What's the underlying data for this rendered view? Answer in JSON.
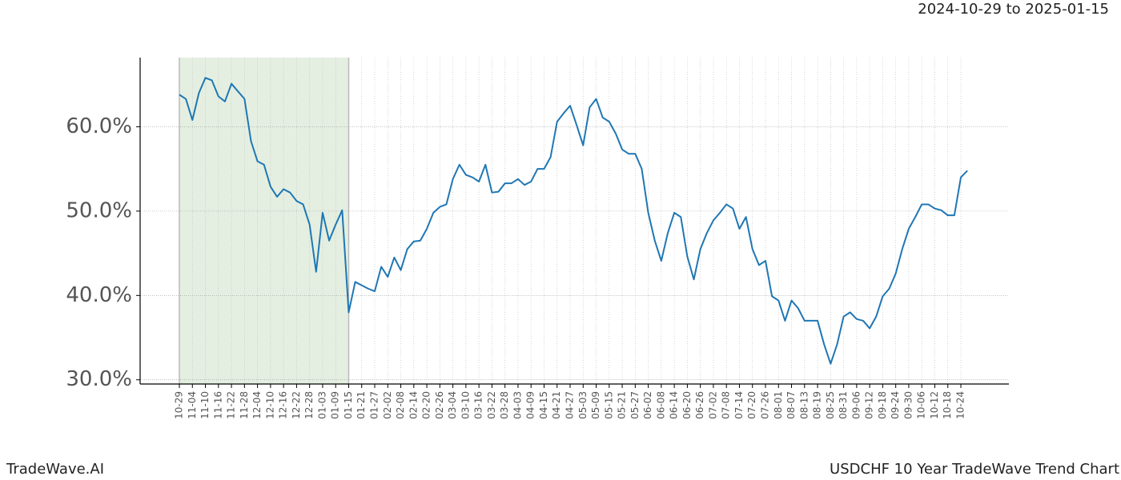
{
  "chart_data": {
    "type": "line",
    "title": "USDCHF 10 Year TradeWave Trend Chart",
    "subtitle": "2024-10-29 to 2025-01-15",
    "source": "TradeWave.AI",
    "categories": [
      "10-29",
      null,
      "11-04",
      null,
      "11-10",
      null,
      "11-16",
      null,
      "11-22",
      null,
      "11-28",
      null,
      "12-04",
      null,
      "12-10",
      null,
      "12-16",
      null,
      "12-22",
      null,
      "12-28",
      null,
      "01-03",
      null,
      "01-09",
      null,
      "01-15",
      null,
      "01-21",
      null,
      "01-27",
      null,
      "02-02",
      null,
      "02-08",
      null,
      "02-14",
      null,
      "02-20",
      null,
      "02-26",
      null,
      "03-04",
      null,
      "03-10",
      null,
      "03-16",
      null,
      "03-22",
      null,
      "03-28",
      null,
      "04-03",
      null,
      "04-09",
      null,
      "04-15",
      null,
      "04-21",
      null,
      "04-27",
      null,
      "05-03",
      null,
      "05-09",
      null,
      "05-15",
      null,
      "05-21",
      null,
      "05-27",
      null,
      "06-02",
      null,
      "06-08",
      null,
      "06-14",
      null,
      "06-20",
      null,
      "06-26",
      null,
      "07-02",
      null,
      "07-08",
      null,
      "07-14",
      null,
      "07-20",
      null,
      "07-26",
      null,
      "08-01",
      null,
      "08-07",
      null,
      "08-13",
      null,
      "08-19",
      null,
      "08-25",
      null,
      "08-31",
      null,
      "09-06",
      null,
      "09-12",
      null,
      "09-18",
      null,
      "09-24",
      null,
      "09-30",
      null,
      "10-06",
      null,
      "10-12",
      null,
      "10-18",
      null,
      "10-24",
      null
    ],
    "series": [
      {
        "color": "#1f77b4",
        "values": [
          63.8,
          63.3,
          60.8,
          64.0,
          65.8,
          65.5,
          63.6,
          63.0,
          65.1,
          64.2,
          63.3,
          58.3,
          55.9,
          55.5,
          52.9,
          51.7,
          52.6,
          52.2,
          51.2,
          50.8,
          48.4,
          42.8,
          49.8,
          46.5,
          48.4,
          50.1,
          38.0,
          41.6,
          41.2,
          40.8,
          40.5,
          43.4,
          42.2,
          44.5,
          43.0,
          45.5,
          46.4,
          46.5,
          47.9,
          49.8,
          50.5,
          50.8,
          53.8,
          55.5,
          54.3,
          54.0,
          53.5,
          55.5,
          52.2,
          52.3,
          53.3,
          53.3,
          53.8,
          53.1,
          53.5,
          55.0,
          55.0,
          56.4,
          60.6,
          61.6,
          62.5,
          60.2,
          57.8,
          62.3,
          63.3,
          61.1,
          60.6,
          59.2,
          57.3,
          56.8,
          56.8,
          55.0,
          49.8,
          46.5,
          44.1,
          47.4,
          49.8,
          49.3,
          44.6,
          41.9,
          45.5,
          47.4,
          48.9,
          49.8,
          50.8,
          50.3,
          47.9,
          49.3,
          45.5,
          43.6,
          44.1,
          39.9,
          39.4,
          37.0,
          39.4,
          38.5,
          37.0,
          37.0,
          37.0,
          34.2,
          31.9,
          34.2,
          37.5,
          38.0,
          37.2,
          37.0,
          36.1,
          37.5,
          39.9,
          40.8,
          42.6,
          45.5,
          47.9,
          49.3,
          50.8,
          50.8,
          50.3,
          50.1,
          49.5,
          49.5,
          54.0,
          54.8
        ]
      }
    ],
    "ylim": [
      29.5,
      68.2
    ],
    "yticks": [
      {
        "value": 30,
        "label": "30.0%"
      },
      {
        "value": 40,
        "label": "40.0%"
      },
      {
        "value": 50,
        "label": "50.0%"
      },
      {
        "value": 60,
        "label": "60.0%"
      }
    ],
    "grid": true,
    "highlight": {
      "from": "10-29",
      "to": "01-15",
      "color": "#e4efe1"
    }
  }
}
